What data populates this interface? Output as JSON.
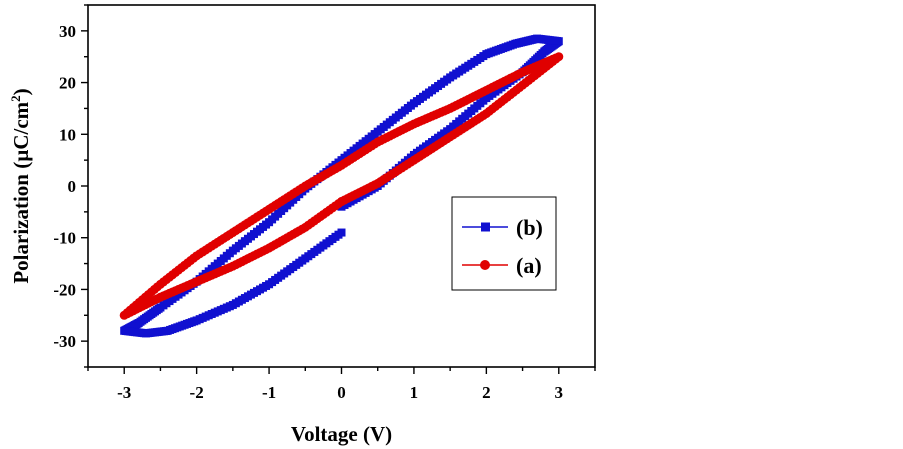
{
  "chart_data": {
    "type": "line",
    "xlabel": "Voltage (V)",
    "ylabel_main": "Polarization (µC/cm",
    "ylabel_sup": "2",
    "ylabel_tail": ")",
    "xlim": [
      -3.5,
      3.5
    ],
    "ylim": [
      -35,
      35
    ],
    "x_ticks": [
      -3,
      -2,
      -1,
      0,
      1,
      2,
      3
    ],
    "y_ticks": [
      -30,
      -20,
      -10,
      0,
      10,
      20,
      30
    ],
    "grid": false,
    "legend_position": "lower-right",
    "series": [
      {
        "name": "(b)",
        "color": "#1010d0",
        "marker": "square",
        "x": [
          0,
          0.5,
          1.0,
          1.5,
          2.0,
          2.5,
          2.8,
          3.0,
          2.7,
          2.4,
          2.0,
          1.5,
          1.0,
          0.5,
          0,
          -0.5,
          -1.0,
          -1.5,
          -2.0,
          -2.5,
          -2.8,
          -3.0,
          -2.7,
          -2.4,
          -2.0,
          -1.5,
          -1.0,
          -0.5,
          0
        ],
        "y": [
          -4,
          0,
          6,
          11,
          17,
          22,
          26,
          28,
          28.5,
          27.5,
          25.5,
          21,
          16,
          10.5,
          5,
          -0.5,
          -7,
          -12.5,
          -18.5,
          -23.5,
          -26.5,
          -28,
          -28.5,
          -28,
          -26,
          -23,
          -19,
          -14,
          -9
        ]
      },
      {
        "name": "(a)",
        "color": "#e00000",
        "marker": "circle",
        "x": [
          0,
          0.5,
          1.0,
          1.5,
          2.0,
          2.5,
          3.0,
          2.5,
          2.0,
          1.5,
          1.0,
          0.5,
          0,
          -0.5,
          -1.0,
          -1.5,
          -2.0,
          -2.5,
          -3.0,
          -2.5,
          -2.0,
          -1.5,
          -1.0,
          -0.5,
          0
        ],
        "y": [
          -3,
          0.5,
          5,
          9.5,
          14,
          19.5,
          25,
          22,
          18.5,
          15,
          12,
          8.5,
          4,
          0,
          -4.5,
          -9,
          -13.5,
          -19,
          -25,
          -21.5,
          -18.5,
          -15.5,
          -12,
          -8,
          -3
        ]
      }
    ]
  }
}
